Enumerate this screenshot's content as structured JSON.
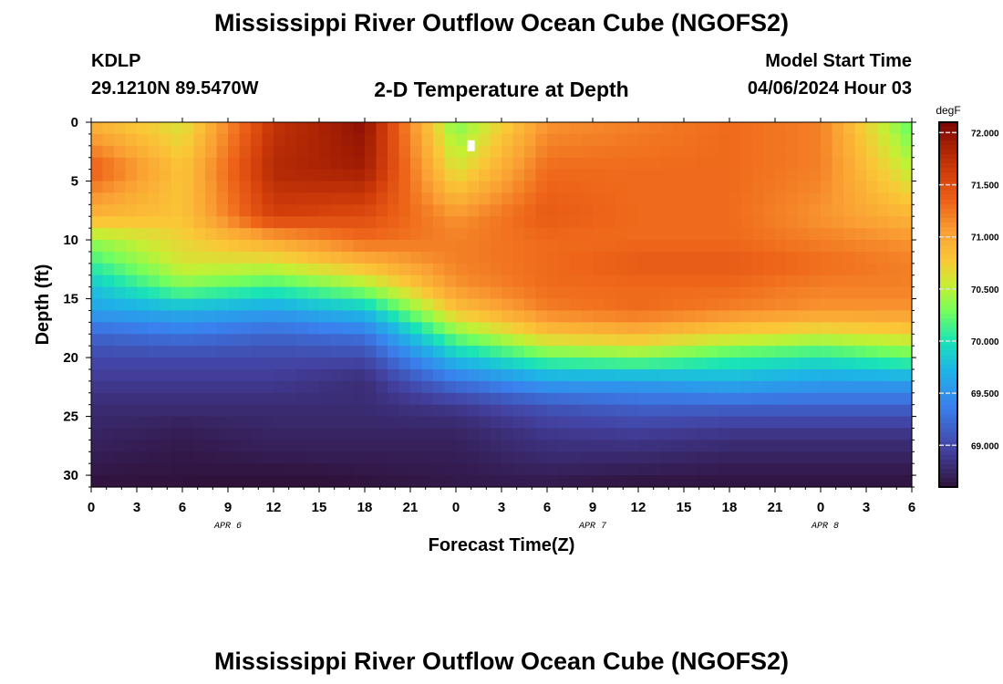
{
  "page": {
    "title": "Mississippi River Outflow Ocean Cube (NGOFS2)",
    "footer_title": "Mississippi River Outflow Ocean Cube (NGOFS2)",
    "station": "KDLP",
    "coords": "29.1210N  89.5470W",
    "subtitle": "2-D Temperature at Depth",
    "model_label": "Model Start Time",
    "model_time": "04/06/2024 Hour 03"
  },
  "chart_data": {
    "type": "heatmap",
    "title": "2-D Temperature at Depth",
    "xlabel": "Forecast Time(Z)",
    "ylabel": "Depth (ft)",
    "x_ticks": [
      "0",
      "3",
      "6",
      "9",
      "12",
      "15",
      "18",
      "21",
      "0",
      "3",
      "6",
      "9",
      "12",
      "15",
      "18",
      "21",
      "0",
      "3",
      "6"
    ],
    "date_labels": [
      {
        "label": "APR 6",
        "tick_index": 3
      },
      {
        "label": "APR 7",
        "tick_index": 11
      },
      {
        "label": "APR 8",
        "tick_index": 16.1
      }
    ],
    "hours": [
      0,
      6,
      12,
      18,
      24,
      30,
      36,
      42,
      48,
      54
    ],
    "depths_ft": [
      0,
      4,
      8,
      10,
      12,
      14,
      16,
      18,
      20,
      22,
      24,
      26,
      28,
      31
    ],
    "temperature_degF": [
      [
        70.9,
        70.6,
        71.7,
        72.0,
        70.3,
        71.1,
        71.2,
        71.3,
        71.2,
        70.2
      ],
      [
        71.4,
        70.8,
        71.8,
        71.9,
        70.6,
        71.3,
        71.3,
        71.3,
        71.2,
        70.5
      ],
      [
        70.9,
        70.8,
        71.6,
        71.5,
        71.1,
        71.4,
        71.3,
        71.3,
        71.1,
        70.9
      ],
      [
        70.4,
        70.7,
        71.0,
        71.3,
        71.2,
        71.3,
        71.3,
        71.3,
        71.2,
        71.1
      ],
      [
        70.1,
        70.6,
        70.6,
        70.9,
        71.2,
        71.3,
        71.4,
        71.4,
        71.3,
        71.2
      ],
      [
        69.8,
        70.3,
        70.1,
        70.4,
        71.1,
        71.3,
        71.3,
        71.3,
        71.2,
        71.2
      ],
      [
        69.6,
        69.7,
        69.6,
        69.8,
        70.8,
        71.2,
        71.3,
        71.2,
        71.1,
        71.1
      ],
      [
        69.2,
        69.3,
        69.2,
        69.3,
        70.3,
        70.8,
        70.9,
        70.7,
        70.6,
        70.7
      ],
      [
        69.0,
        69.0,
        69.0,
        69.0,
        69.8,
        70.2,
        70.3,
        70.1,
        70.0,
        70.2
      ],
      [
        68.9,
        68.9,
        68.9,
        68.8,
        69.3,
        69.6,
        69.6,
        69.7,
        69.6,
        69.6
      ],
      [
        68.8,
        68.8,
        68.8,
        68.8,
        68.9,
        69.1,
        69.2,
        69.2,
        69.2,
        69.2
      ],
      [
        68.75,
        68.7,
        68.75,
        68.75,
        68.75,
        68.9,
        68.95,
        68.9,
        68.9,
        68.9
      ],
      [
        68.7,
        68.65,
        68.7,
        68.7,
        68.7,
        68.8,
        68.8,
        68.75,
        68.75,
        68.75
      ],
      [
        68.6,
        68.6,
        68.55,
        68.6,
        68.65,
        68.65,
        68.6,
        68.6,
        68.6,
        68.6
      ]
    ],
    "marker": {
      "hour": 25,
      "depth_ft": 2
    },
    "xlim": [
      0,
      54
    ],
    "ylim": [
      0,
      31
    ],
    "y_ticks": [
      0,
      5,
      10,
      15,
      20,
      25,
      30
    ],
    "colorbar": {
      "unit": "degF",
      "range": [
        68.6,
        72.1
      ],
      "ticks": [
        "72.000",
        "71.500",
        "71.000",
        "70.500",
        "70.000",
        "69.500",
        "69.000"
      ],
      "tick_values": [
        72.0,
        71.5,
        71.0,
        70.5,
        70.0,
        69.5,
        69.0
      ]
    }
  }
}
